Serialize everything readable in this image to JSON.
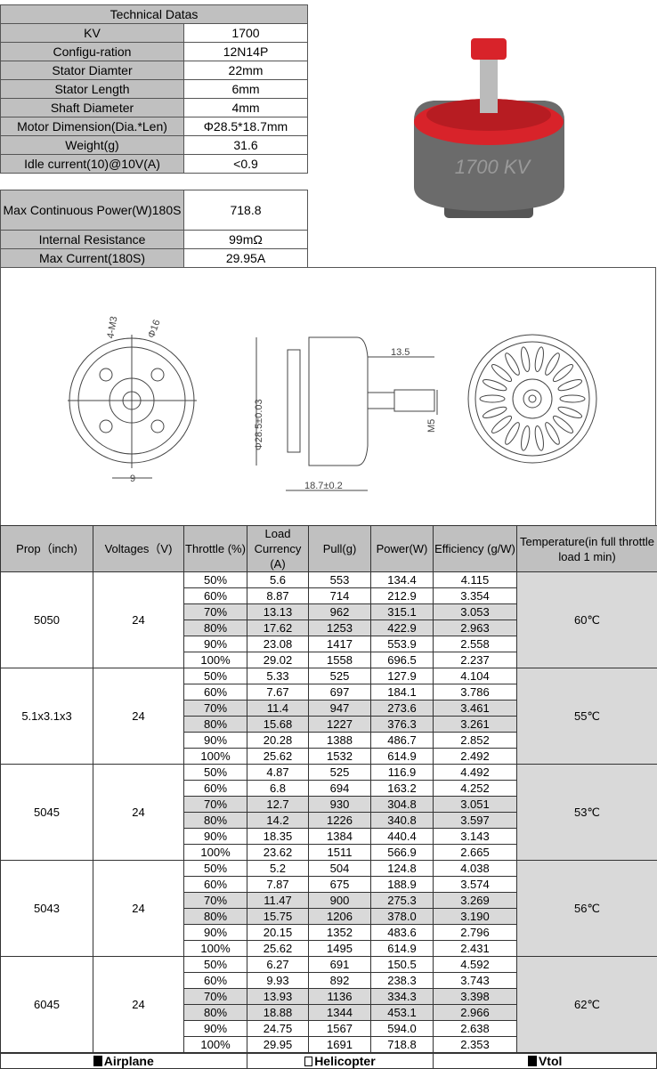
{
  "specs": {
    "title": "Technical Datas",
    "rows": [
      {
        "label": "KV",
        "value": "1700"
      },
      {
        "label": "Configu-ration",
        "value": "12N14P"
      },
      {
        "label": "Stator Diamter",
        "value": "22mm"
      },
      {
        "label": "Stator Length",
        "value": "6mm"
      },
      {
        "label": "Shaft Diameter",
        "value": "4mm"
      },
      {
        "label": "Motor Dimension(Dia.*Len)",
        "value": "Φ28.5*18.7mm"
      },
      {
        "label": "Weight(g)",
        "value": "31.6"
      },
      {
        "label": "Idle current(10)@10V(A)",
        "value": "<0.9"
      }
    ],
    "rows2": [
      {
        "label": "Max Continuous Power(W)180S",
        "value": "718.8"
      },
      {
        "label": "Internal Resistance",
        "value": "99mΩ"
      },
      {
        "label": "Max Current(180S)",
        "value": "29.95A"
      }
    ]
  },
  "photo": {
    "motor_text": "1700 KV",
    "colors": {
      "bell": "#d8232a",
      "body": "#6b6b6b"
    }
  },
  "drawing": {
    "front_labels": {
      "holes": "4-M3",
      "circle": "Φ16",
      "width": "9"
    },
    "side_labels": {
      "diameter": "Φ28.5±0.03",
      "shaft_len": "13.5",
      "thread": "M5",
      "length": "18.7±0.2"
    }
  },
  "performance": {
    "headers": [
      "Prop（inch)",
      "Voltages（V)",
      "Throttle (%)",
      "Load Currency (A)",
      "Pull(g)",
      "Power(W)",
      "Efficiency (g/W)",
      "Temperature(in full throttle load 1 min)"
    ],
    "groups": [
      {
        "prop": "5050",
        "voltage": "24",
        "temp": "60℃",
        "rows": [
          [
            "50%",
            "5.6",
            "553",
            "134.4",
            "4.115"
          ],
          [
            "60%",
            "8.87",
            "714",
            "212.9",
            "3.354"
          ],
          [
            "70%",
            "13.13",
            "962",
            "315.1",
            "3.053"
          ],
          [
            "80%",
            "17.62",
            "1253",
            "422.9",
            "2.963"
          ],
          [
            "90%",
            "23.08",
            "1417",
            "553.9",
            "2.558"
          ],
          [
            "100%",
            "29.02",
            "1558",
            "696.5",
            "2.237"
          ]
        ]
      },
      {
        "prop": "5.1x3.1x3",
        "voltage": "24",
        "temp": "55℃",
        "rows": [
          [
            "50%",
            "5.33",
            "525",
            "127.9",
            "4.104"
          ],
          [
            "60%",
            "7.67",
            "697",
            "184.1",
            "3.786"
          ],
          [
            "70%",
            "11.4",
            "947",
            "273.6",
            "3.461"
          ],
          [
            "80%",
            "15.68",
            "1227",
            "376.3",
            "3.261"
          ],
          [
            "90%",
            "20.28",
            "1388",
            "486.7",
            "2.852"
          ],
          [
            "100%",
            "25.62",
            "1532",
            "614.9",
            "2.492"
          ]
        ]
      },
      {
        "prop": "5045",
        "voltage": "24",
        "temp": "53℃",
        "rows": [
          [
            "50%",
            "4.87",
            "525",
            "116.9",
            "4.492"
          ],
          [
            "60%",
            "6.8",
            "694",
            "163.2",
            "4.252"
          ],
          [
            "70%",
            "12.7",
            "930",
            "304.8",
            "3.051"
          ],
          [
            "80%",
            "14.2",
            "1226",
            "340.8",
            "3.597"
          ],
          [
            "90%",
            "18.35",
            "1384",
            "440.4",
            "3.143"
          ],
          [
            "100%",
            "23.62",
            "1511",
            "566.9",
            "2.665"
          ]
        ]
      },
      {
        "prop": "5043",
        "voltage": "24",
        "temp": "56℃",
        "rows": [
          [
            "50%",
            "5.2",
            "504",
            "124.8",
            "4.038"
          ],
          [
            "60%",
            "7.87",
            "675",
            "188.9",
            "3.574"
          ],
          [
            "70%",
            "11.47",
            "900",
            "275.3",
            "3.269"
          ],
          [
            "80%",
            "15.75",
            "1206",
            "378.0",
            "3.190"
          ],
          [
            "90%",
            "20.15",
            "1352",
            "483.6",
            "2.796"
          ],
          [
            "100%",
            "25.62",
            "1495",
            "614.9",
            "2.431"
          ]
        ]
      },
      {
        "prop": "6045",
        "voltage": "24",
        "temp": "62℃",
        "rows": [
          [
            "50%",
            "6.27",
            "691",
            "150.5",
            "4.592"
          ],
          [
            "60%",
            "9.93",
            "892",
            "238.3",
            "3.743"
          ],
          [
            "70%",
            "13.93",
            "1136",
            "334.3",
            "3.398"
          ],
          [
            "80%",
            "18.88",
            "1344",
            "453.1",
            "2.966"
          ],
          [
            "90%",
            "24.75",
            "1567",
            "594.0",
            "2.638"
          ],
          [
            "100%",
            "29.95",
            "1691",
            "718.8",
            "2.353"
          ]
        ]
      }
    ]
  },
  "footer": [
    {
      "label": "Airplane",
      "checked": true
    },
    {
      "label": "Helicopter",
      "checked": false
    },
    {
      "label": "Vtol",
      "checked": true
    }
  ]
}
